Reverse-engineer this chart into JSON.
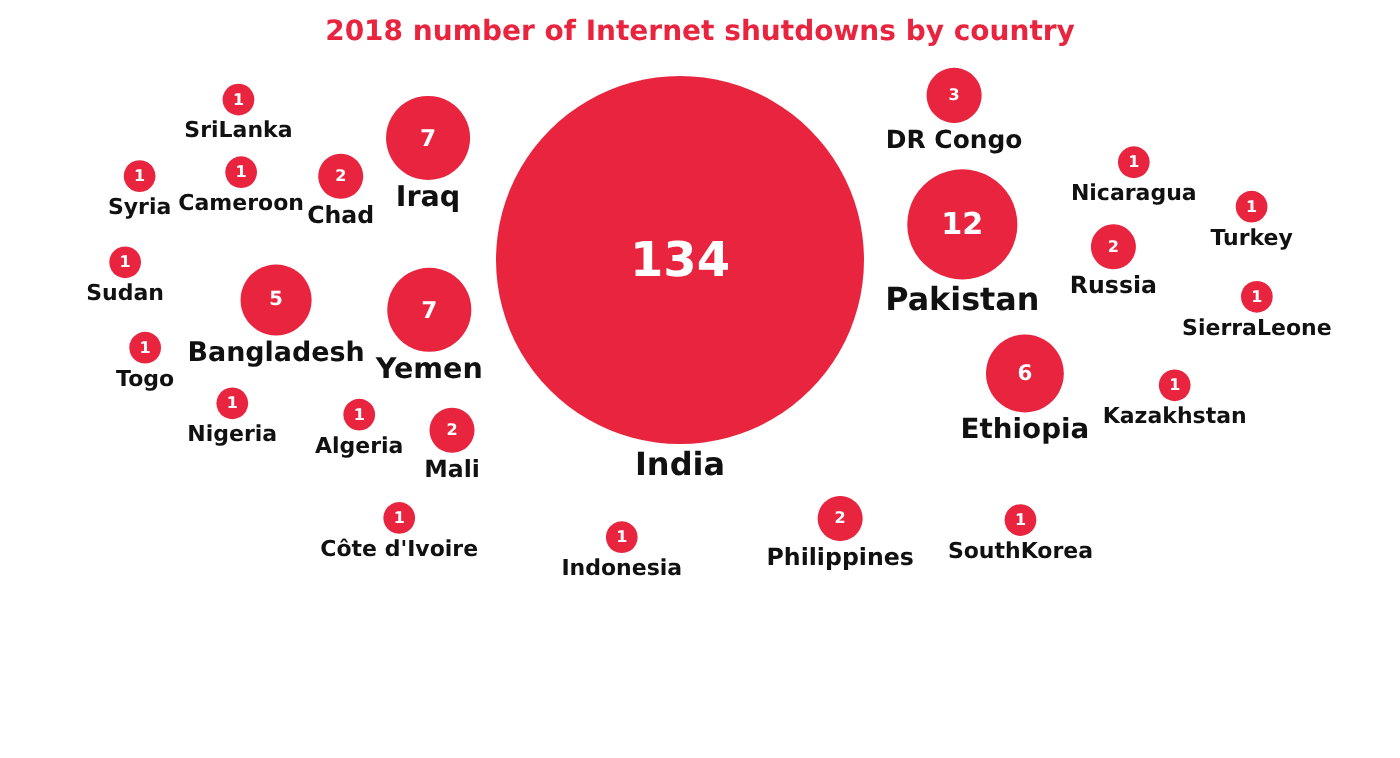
{
  "chart_data": {
    "type": "other",
    "title": "2018 number of Internet shutdowns by country",
    "categories": [
      "India",
      "Pakistan",
      "Yemen",
      "Iraq",
      "Ethiopia",
      "Bangladesh",
      "DR Congo",
      "Mali",
      "Chad",
      "Russia",
      "Philippines",
      "Algeria",
      "Indonesia",
      "Cameroon",
      "Côte d'Ivoire",
      "Nicaragua",
      "Kazakhstan",
      "Nigeria",
      "SouthKorea",
      "SriLanka",
      "SierraLeone",
      "Sudan",
      "Syria",
      "Togo",
      "Turkey"
    ],
    "values": [
      134,
      12,
      7,
      7,
      6,
      5,
      3,
      2,
      2,
      2,
      2,
      1,
      1,
      1,
      1,
      1,
      1,
      1,
      1,
      1,
      1,
      1,
      1,
      1,
      1
    ],
    "color": "#e8243f",
    "data_labels": true
  }
}
